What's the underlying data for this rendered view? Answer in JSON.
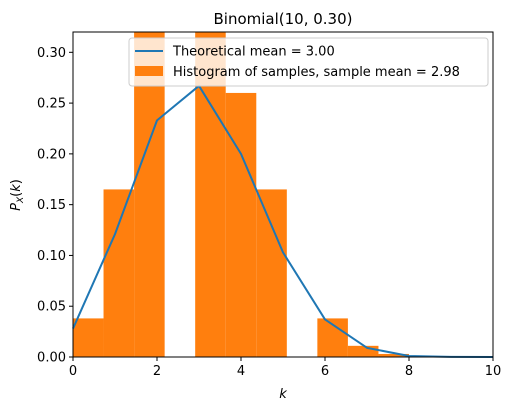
{
  "chart_data": {
    "type": "bar",
    "title": "Binomial(10, 0.30)",
    "xlabel": "k",
    "ylabel": "P_X(k)",
    "xlim": [
      0,
      10
    ],
    "ylim": [
      0,
      0.32
    ],
    "xticks": [
      "0",
      "2",
      "4",
      "6",
      "8",
      "10"
    ],
    "yticks": [
      "0.00",
      "0.05",
      "0.10",
      "0.15",
      "0.20",
      "0.25",
      "0.30"
    ],
    "legend_position": "upper right",
    "colors": {
      "line": "#1f77b4",
      "histogram": "#ff7f0e"
    },
    "series": [
      {
        "name": "Theoretical mean = 3.00",
        "type": "line",
        "x": [
          0,
          1,
          2,
          3,
          4,
          5,
          6,
          7,
          8,
          9,
          10
        ],
        "y": [
          0.028,
          0.121,
          0.233,
          0.267,
          0.2,
          0.103,
          0.037,
          0.009,
          0.001,
          0.0001,
          0.0
        ]
      },
      {
        "name": "Histogram of samples, sample mean = 2.98",
        "type": "histogram",
        "bin_edges": [
          0.0,
          0.727,
          1.455,
          2.182,
          2.909,
          3.636,
          4.364,
          5.091,
          5.818,
          6.545,
          7.273,
          8.0
        ],
        "values": [
          0.038,
          0.165,
          0.32,
          0.0,
          0.32,
          0.26,
          0.165,
          0.0,
          0.038,
          0.011,
          0.003
        ]
      }
    ]
  }
}
